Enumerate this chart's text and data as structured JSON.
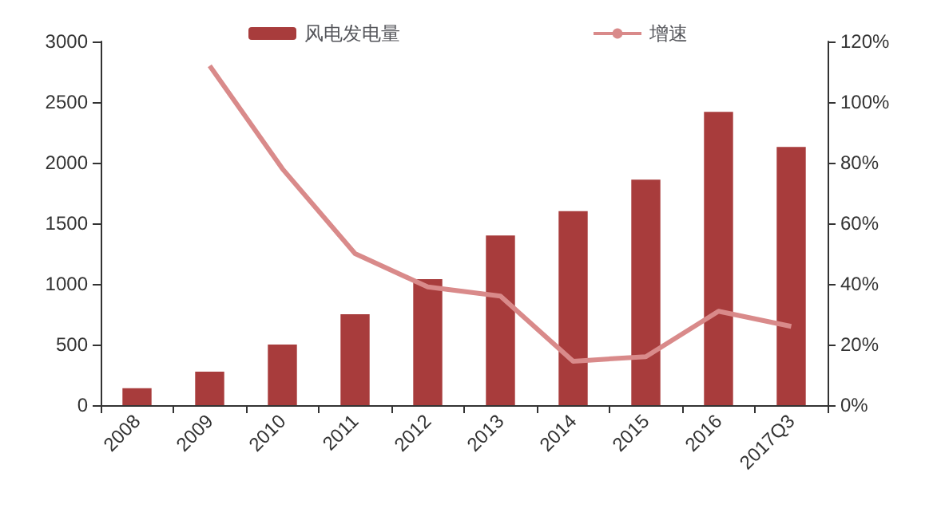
{
  "chart_data": {
    "type": "bar",
    "categories": [
      "2008",
      "2009",
      "2010",
      "2011",
      "2012",
      "2013",
      "2014",
      "2015",
      "2016",
      "2017Q3"
    ],
    "series": [
      {
        "name": "风电发电量",
        "color": "#a83c3c",
        "values": [
          140,
          276,
          500,
          750,
          1040,
          1400,
          1600,
          1860,
          2420,
          2130
        ]
      },
      {
        "name": "增速",
        "type": "line",
        "axis": "y2",
        "color": "#d98a8a",
        "values": [
          null,
          112,
          78,
          50,
          39,
          36,
          14.5,
          16,
          31,
          26
        ]
      }
    ],
    "ylim": [
      0,
      3000
    ],
    "yticks": [
      0,
      500,
      1000,
      1500,
      2000,
      2500,
      3000
    ],
    "y2lim": [
      0,
      120
    ],
    "y2ticks": [
      {
        "value": 0,
        "label": "0%"
      },
      {
        "value": 20,
        "label": "20%"
      },
      {
        "value": 40,
        "label": "40%"
      },
      {
        "value": 60,
        "label": "60%"
      },
      {
        "value": 80,
        "label": "80%"
      },
      {
        "value": 100,
        "label": "100%"
      },
      {
        "value": 120,
        "label": "120%"
      }
    ],
    "legend": "top",
    "grid": false,
    "marker": "none"
  }
}
